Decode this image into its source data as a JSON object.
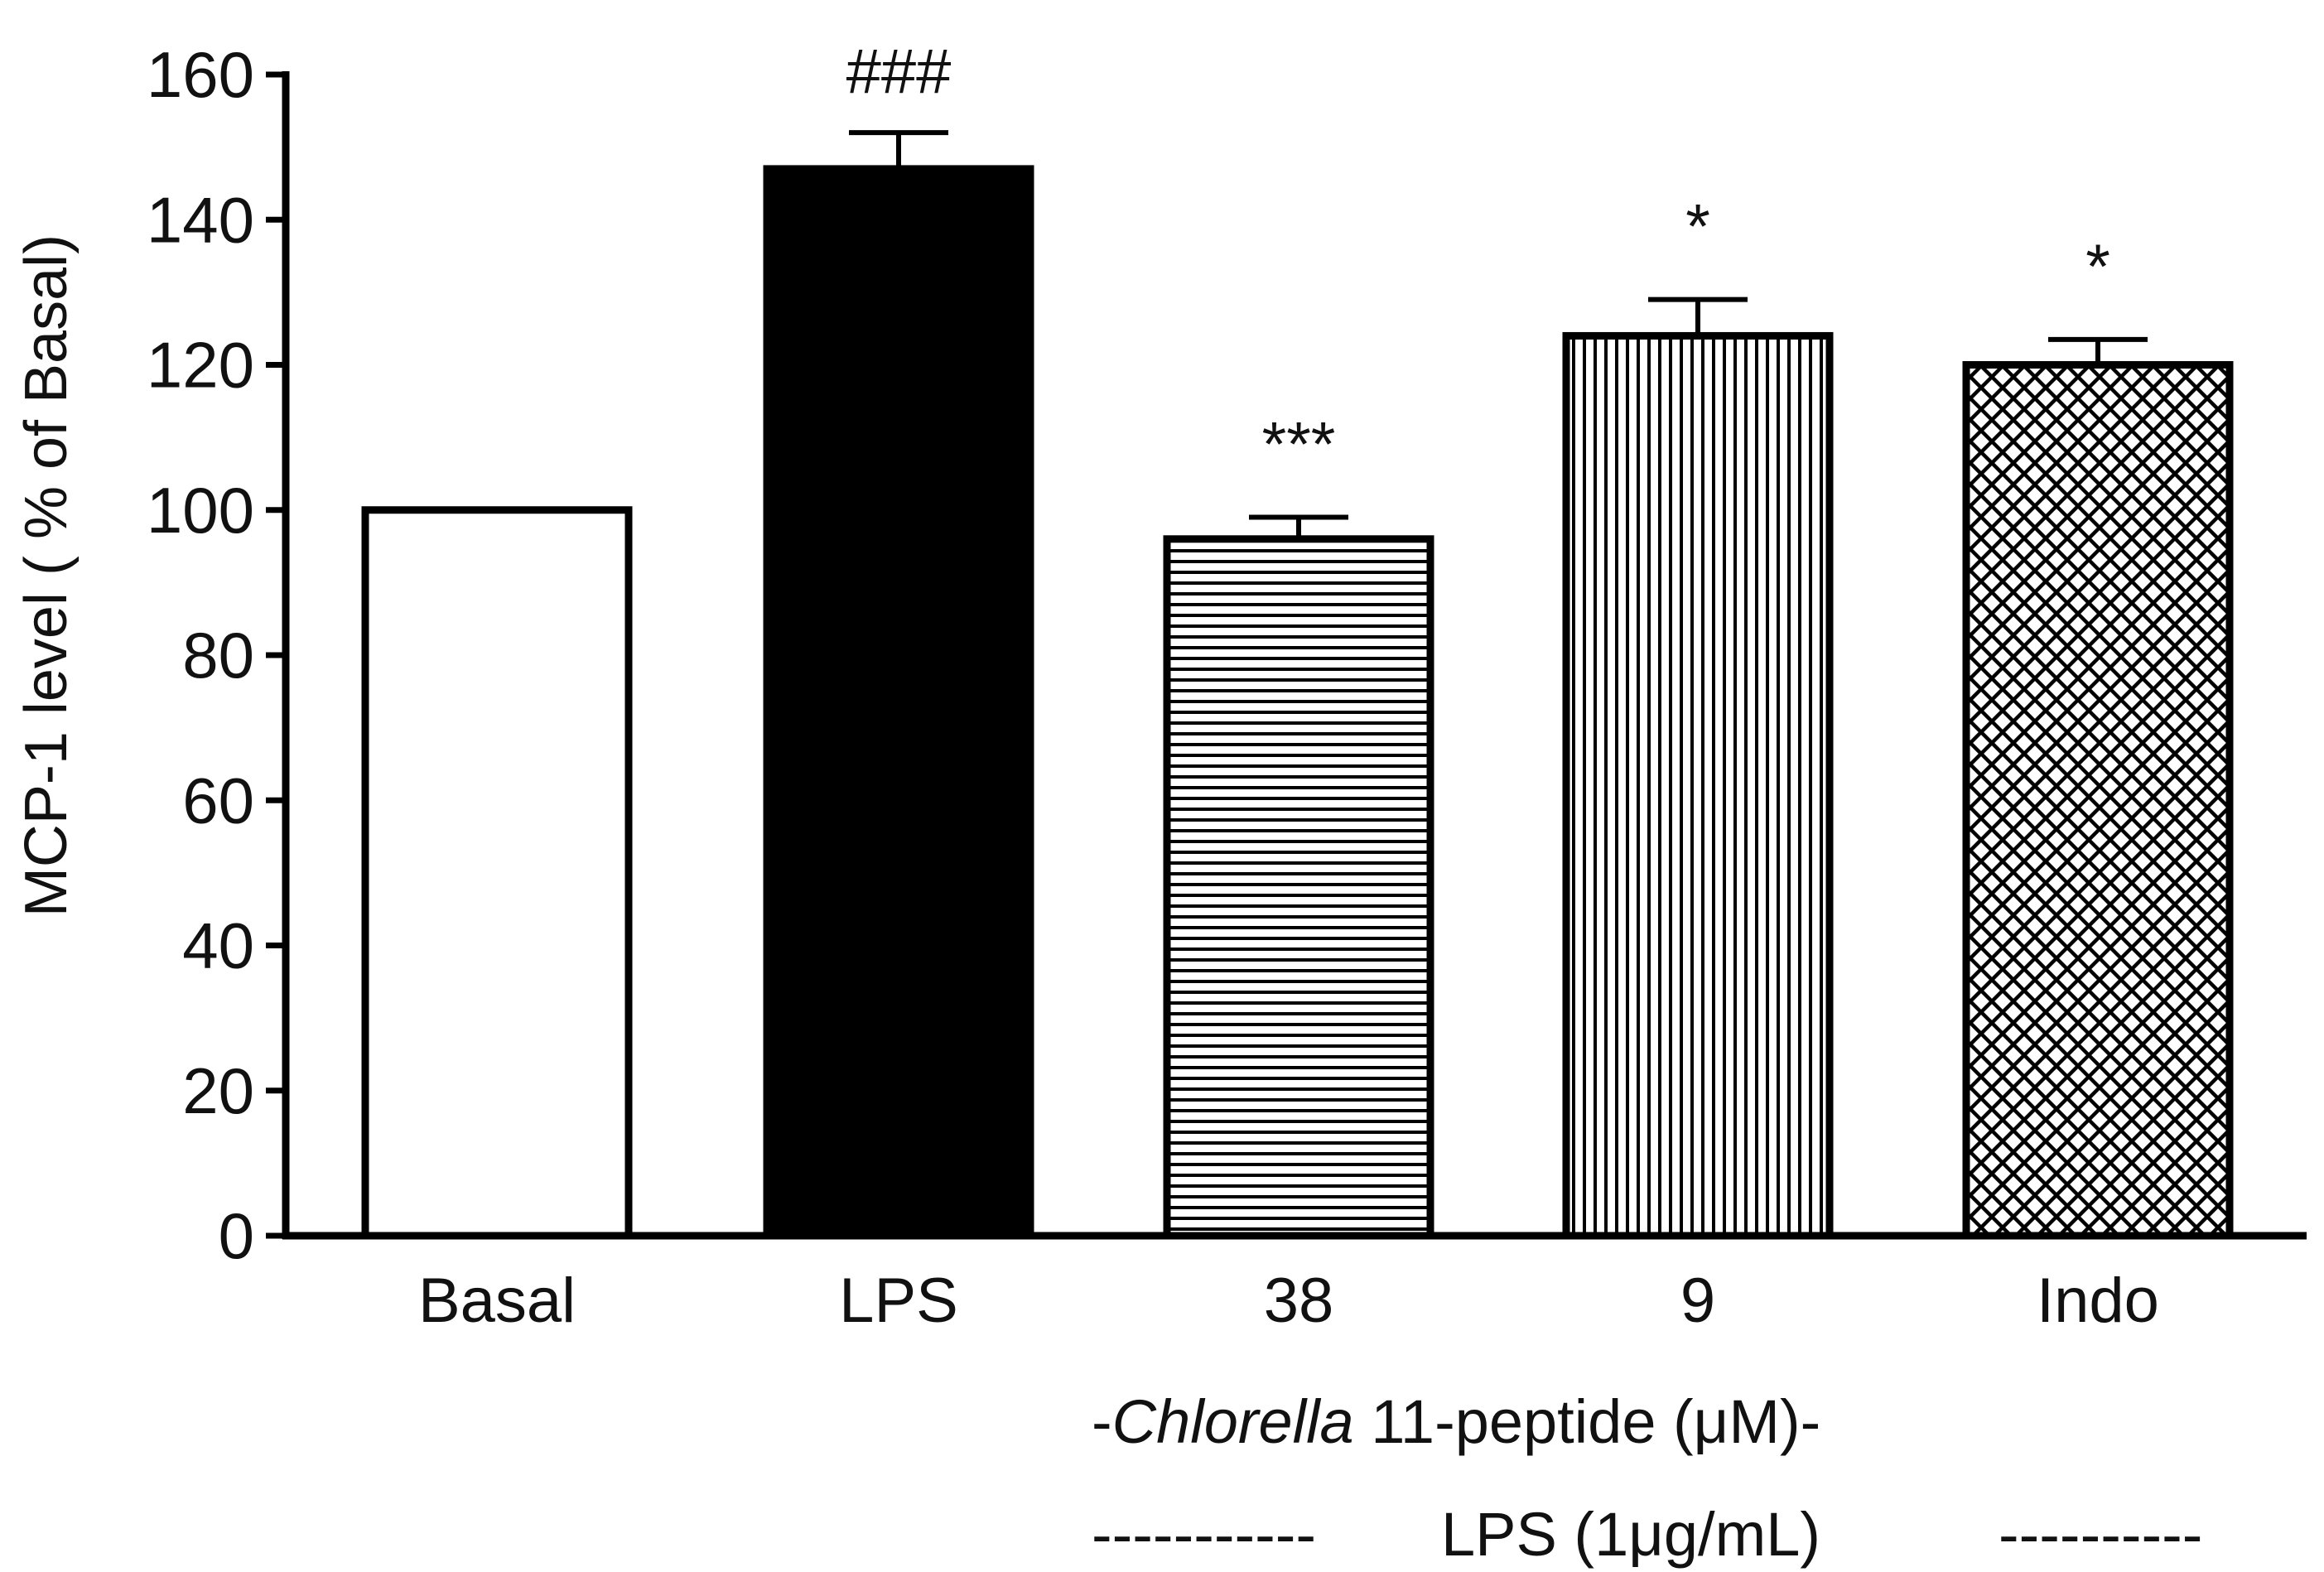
{
  "chart_data": {
    "type": "bar",
    "ylabel": "MCP-1 level ( % of Basal)",
    "xlabel": "",
    "ylim": [
      0,
      160
    ],
    "yticks": [
      0,
      20,
      40,
      60,
      80,
      100,
      120,
      140,
      160
    ],
    "categories": [
      "Basal",
      "LPS",
      "38",
      "9",
      "Indo"
    ],
    "values": [
      100,
      147,
      96,
      124,
      120
    ],
    "errors": [
      0,
      5,
      3,
      5,
      3.5
    ],
    "patterns": [
      "white",
      "solid-black",
      "horizontal-lines",
      "vertical-lines",
      "crosshatch"
    ],
    "annotations": [
      "",
      "###",
      "***",
      "*",
      "*"
    ],
    "group_label": {
      "prefix": "-",
      "italic": "Chlorella",
      "rest": " 11-peptide (μM)-"
    },
    "condition_label": {
      "left_dashes": "-----------",
      "text": "LPS (1μg/mL)",
      "right_dashes": "----------"
    },
    "colors": {
      "axis": "#000000",
      "bar_fill": "#000000",
      "bar_bg": "#ffffff"
    }
  }
}
